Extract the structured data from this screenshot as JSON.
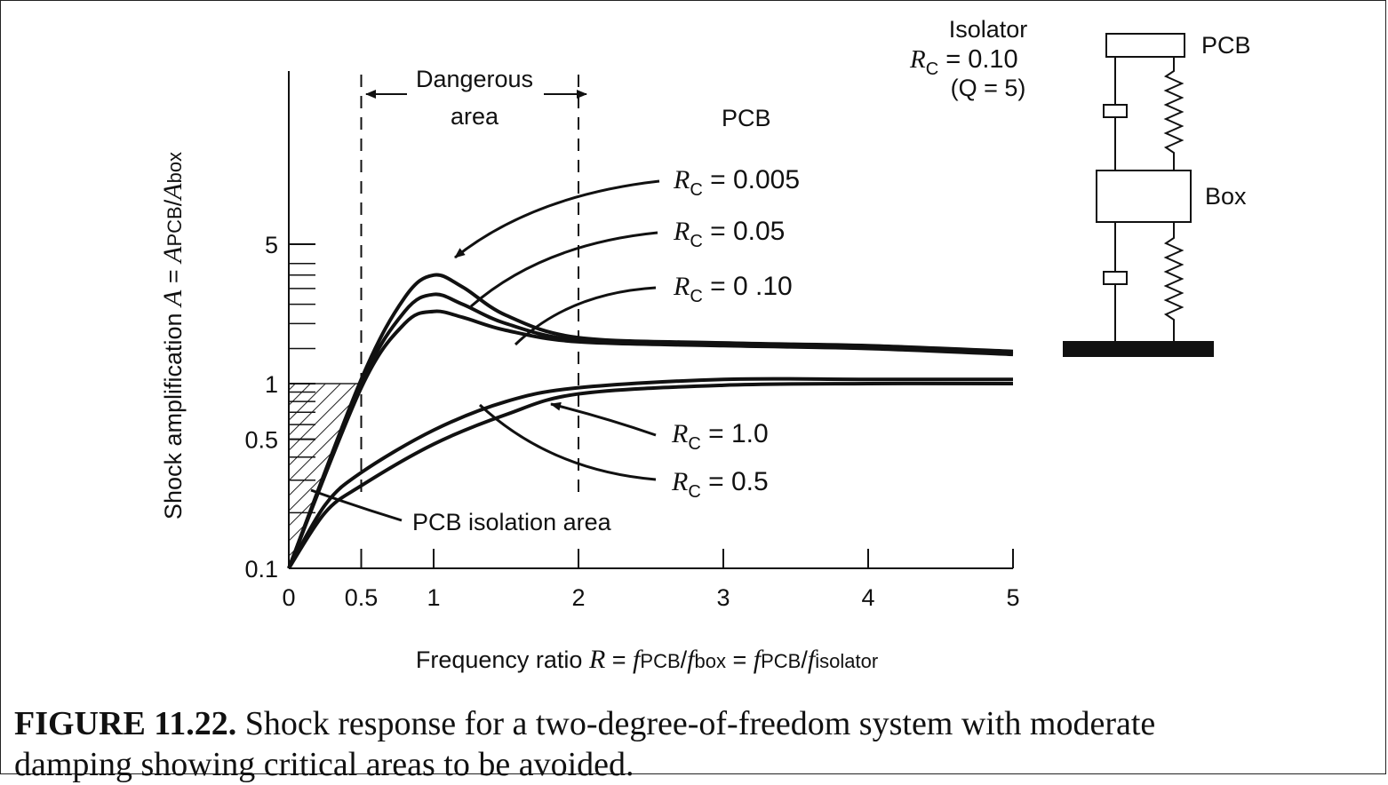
{
  "chart_data": {
    "type": "line",
    "xlabel_parts": [
      "Frequency ratio ",
      "R",
      " = ",
      "f",
      "PCB",
      "/",
      "f",
      "box",
      " = ",
      "f",
      "PCB",
      "/",
      "f",
      "isolator"
    ],
    "ylabel_parts": [
      "Shock amplification ",
      "A",
      " = ",
      "A",
      "PCB",
      "/",
      "A",
      "box"
    ],
    "xlim": [
      0,
      5
    ],
    "x_ticks": [
      "0",
      "0.5",
      "1",
      "2",
      "3",
      "4",
      "5"
    ],
    "x_tick_values": [
      0,
      0.5,
      1,
      2,
      3,
      4,
      5
    ],
    "y_ticks": [
      "0.1",
      "0.5",
      "1",
      "5"
    ],
    "y_tick_values": [
      0.1,
      0.5,
      1,
      5
    ],
    "y_scale": "log",
    "series": [
      {
        "name": "R_C = 0.005",
        "x": [
          0,
          0.5,
          0.8,
          1.0,
          1.2,
          1.5,
          2.0,
          3.0,
          4.0,
          5.0
        ],
        "y": [
          0.1,
          1.05,
          2.7,
          3.5,
          3.05,
          2.2,
          1.7,
          1.6,
          1.55,
          1.45
        ]
      },
      {
        "name": "R_C = 0.05",
        "x": [
          0,
          0.5,
          0.8,
          1.0,
          1.2,
          1.5,
          2.0,
          3.0,
          4.0,
          5.0
        ],
        "y": [
          0.1,
          1.0,
          2.3,
          2.8,
          2.5,
          2.0,
          1.65,
          1.58,
          1.52,
          1.42
        ]
      },
      {
        "name": "R_C = 0.10",
        "x": [
          0,
          0.5,
          0.8,
          1.0,
          1.2,
          1.5,
          2.0,
          3.0,
          4.0,
          5.0
        ],
        "y": [
          0.1,
          0.95,
          2.0,
          2.3,
          2.15,
          1.85,
          1.62,
          1.55,
          1.5,
          1.4
        ]
      },
      {
        "name": "R_C = 0.5",
        "x": [
          0,
          0.25,
          0.5,
          1.0,
          1.5,
          2.0,
          3.0,
          4.0,
          5.0
        ],
        "y": [
          0.1,
          0.22,
          0.33,
          0.56,
          0.8,
          0.95,
          1.05,
          1.05,
          1.05
        ]
      },
      {
        "name": "R_C = 1.0",
        "x": [
          0,
          0.25,
          0.5,
          1.0,
          1.5,
          2.0,
          3.0,
          4.0,
          5.0
        ],
        "y": [
          0.1,
          0.2,
          0.28,
          0.47,
          0.68,
          0.88,
          0.98,
          1.0,
          1.0
        ]
      }
    ],
    "series_labels": [
      {
        "pre": "R",
        "sub": "C",
        "post": " = 0.005"
      },
      {
        "pre": "R",
        "sub": "C",
        "post": " = 0.05"
      },
      {
        "pre": "R",
        "sub": "C",
        "post": " = 0 .10"
      },
      {
        "pre": "R",
        "sub": "C",
        "post": " = 1.0"
      },
      {
        "pre": "R",
        "sub": "C",
        "post": " = 0.5"
      }
    ],
    "annotations": {
      "dangerous_line1": "Dangerous",
      "dangerous_line2": "area",
      "dangerous_range": [
        0.5,
        2.0
      ],
      "pcb_header": "PCB",
      "isolation_area": "PCB isolation area"
    },
    "inset": {
      "isolator_title": "Isolator",
      "isolator_rc": {
        "pre": "R",
        "sub": "C",
        "post": " = 0.10"
      },
      "isolator_q": "(Q = 5)",
      "pcb_label": "PCB",
      "box_label": "Box"
    }
  },
  "caption": {
    "figure_id": "FIGURE 11.22.",
    "line1": " Shock response for a two-degree-of-freedom system with moderate",
    "line2": "damping showing critical areas to be avoided."
  }
}
